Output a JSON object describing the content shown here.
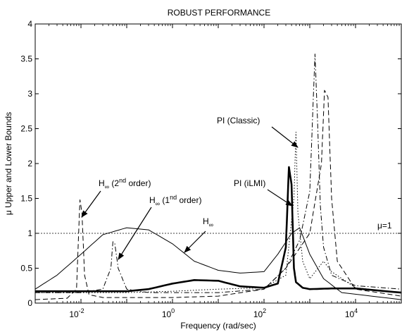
{
  "chart_data": {
    "type": "line",
    "title": "ROBUST PERFORMANCE",
    "xlabel": "Frequency (rad/sec)",
    "ylabel": "μ Upper and Lower Bounds",
    "xscale": "log",
    "xlim": [
      0.001,
      100000
    ],
    "ylim": [
      0,
      4
    ],
    "xticks": [
      {
        "value": 0.01,
        "base": "10",
        "exp": "-2"
      },
      {
        "value": 1,
        "base": "10",
        "exp": "0"
      },
      {
        "value": 100,
        "base": "10",
        "exp": "2"
      },
      {
        "value": 10000,
        "base": "10",
        "exp": "4"
      }
    ],
    "yticks": [
      {
        "value": 0,
        "label": "0"
      },
      {
        "value": 0.5,
        "label": "0.5"
      },
      {
        "value": 1,
        "label": "1"
      },
      {
        "value": 1.5,
        "label": "1.5"
      },
      {
        "value": 2,
        "label": "2"
      },
      {
        "value": 2.5,
        "label": "2.5"
      },
      {
        "value": 3,
        "label": "3"
      },
      {
        "value": 3.5,
        "label": "3.5"
      },
      {
        "value": 4,
        "label": "4"
      }
    ],
    "grid": false,
    "series": [
      {
        "name": "H∞",
        "style": "solid-thin",
        "x": [
          0.001,
          0.003,
          0.01,
          0.03,
          0.1,
          0.3,
          1,
          3,
          10,
          30,
          100,
          200,
          400,
          600,
          1000,
          2000,
          5000,
          100000
        ],
        "y": [
          0.2,
          0.4,
          0.7,
          0.98,
          1.08,
          1.05,
          0.85,
          0.6,
          0.47,
          0.43,
          0.45,
          0.7,
          1.0,
          1.08,
          0.7,
          0.35,
          0.15,
          0.05
        ]
      },
      {
        "name": "PI (iLMI)",
        "style": "solid-thick",
        "x": [
          0.001,
          0.01,
          0.1,
          0.3,
          1,
          3,
          10,
          30,
          100,
          200,
          300,
          350,
          400,
          450,
          500,
          700,
          1000,
          3000,
          10000,
          100000
        ],
        "y": [
          0.17,
          0.17,
          0.17,
          0.2,
          0.28,
          0.33,
          0.32,
          0.24,
          0.22,
          0.28,
          0.8,
          1.95,
          1.7,
          0.5,
          0.3,
          0.22,
          0.2,
          0.21,
          0.21,
          0.15
        ]
      },
      {
        "name": "PI (Classic)",
        "style": "dotted",
        "x": [
          0.001,
          0.01,
          0.1,
          1,
          10,
          100,
          300,
          450,
          500,
          550,
          700,
          1000,
          2000,
          3000,
          10000,
          100000
        ],
        "y": [
          0.15,
          0.15,
          0.15,
          0.17,
          0.2,
          0.22,
          0.4,
          1.5,
          2.45,
          1.3,
          0.6,
          0.35,
          0.6,
          0.45,
          0.22,
          0.15
        ]
      },
      {
        "name": "H∞ (1nd order)",
        "style": "dashdot",
        "x": [
          0.001,
          0.01,
          0.03,
          0.045,
          0.05,
          0.055,
          0.065,
          0.1,
          0.3,
          1,
          10,
          100,
          300,
          600,
          1000,
          1300,
          1500,
          1700,
          2000,
          3000,
          10000,
          100000
        ],
        "y": [
          0.15,
          0.15,
          0.2,
          0.5,
          0.88,
          0.85,
          0.5,
          0.2,
          0.15,
          0.15,
          0.15,
          0.2,
          0.5,
          0.9,
          1.6,
          3.57,
          2.5,
          1.4,
          0.8,
          0.4,
          0.25,
          0.2
        ]
      },
      {
        "name": "H∞ (2nd order)",
        "style": "dashed",
        "x": [
          0.001,
          0.005,
          0.008,
          0.0095,
          0.0105,
          0.012,
          0.015,
          0.03,
          0.1,
          1,
          10,
          100,
          300,
          1000,
          1800,
          2100,
          2500,
          3000,
          4000,
          10000,
          100000
        ],
        "y": [
          0.05,
          0.07,
          0.2,
          1.48,
          1.3,
          0.4,
          0.12,
          0.08,
          0.08,
          0.08,
          0.1,
          0.2,
          0.5,
          1.0,
          2.0,
          3.05,
          2.95,
          1.5,
          0.6,
          0.2,
          0.1
        ]
      }
    ],
    "reference_line": {
      "y": 1,
      "label": "μ=1"
    },
    "annotations": {
      "pi_classic": "PI (Classic)",
      "pi_ilmi": "PI (iLMI)",
      "hinf_2nd": {
        "base": "H",
        "sub": "∞",
        "open": " (2",
        "sup": "nd",
        "close": " order)"
      },
      "hinf_1st": {
        "base": "H",
        "sub": "∞",
        "open": " (1",
        "sup": "nd",
        "close": " order)"
      },
      "hinf": {
        "base": "H",
        "sub": "∞"
      }
    }
  }
}
